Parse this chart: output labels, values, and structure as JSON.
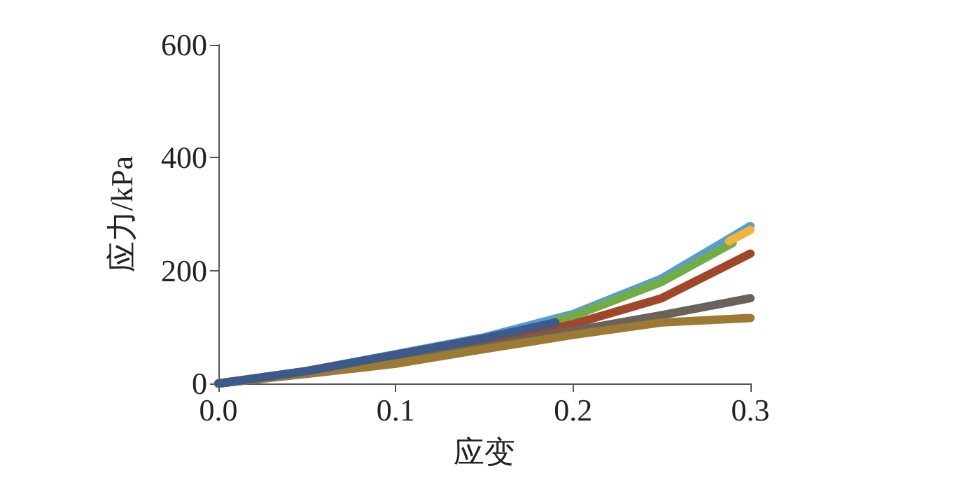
{
  "chart_data": {
    "type": "line",
    "xlabel": "应变",
    "ylabel": "应力/kPa",
    "xlim": [
      0,
      0.3
    ],
    "ylim": [
      0,
      600
    ],
    "xticks": [
      {
        "value": 0,
        "label": "0.0"
      },
      0.1,
      0.2,
      0.3
    ],
    "yticks": [
      0,
      200,
      400,
      600
    ],
    "grid": false,
    "marker": "none",
    "line_style": "solid",
    "series": [
      {
        "color": "#5b9bd5",
        "x": [
          0,
          0.05,
          0.1,
          0.15,
          0.2,
          0.25,
          0.3
        ],
        "values": [
          0,
          22,
          52,
          82,
          123,
          186,
          279
        ]
      },
      {
        "color": "#70ad47",
        "x": [
          0.19,
          0.2,
          0.25,
          0.29
        ],
        "values": [
          111,
          119,
          180,
          249
        ]
      },
      {
        "color": "#f0b43c",
        "x": [
          0.288,
          0.3
        ],
        "values": [
          252,
          272
        ]
      },
      {
        "color": "#a0462a",
        "x": [
          0,
          0.05,
          0.1,
          0.15,
          0.2,
          0.25,
          0.3
        ],
        "values": [
          0,
          19,
          44,
          72,
          105,
          151,
          230
        ]
      },
      {
        "color": "#6b625c",
        "x": [
          0,
          0.05,
          0.1,
          0.15,
          0.2,
          0.25,
          0.3
        ],
        "values": [
          0,
          18,
          40,
          64,
          93,
          121,
          151
        ]
      },
      {
        "color": "#9c7a34",
        "x": [
          0,
          0.05,
          0.1,
          0.15,
          0.2,
          0.25,
          0.3
        ],
        "values": [
          0,
          17,
          35,
          61,
          86,
          108,
          116
        ]
      },
      {
        "color": "#3e5a8a",
        "x": [
          0,
          0.05,
          0.1,
          0.15,
          0.19
        ],
        "values": [
          0,
          22,
          51,
          80,
          108
        ]
      }
    ]
  }
}
